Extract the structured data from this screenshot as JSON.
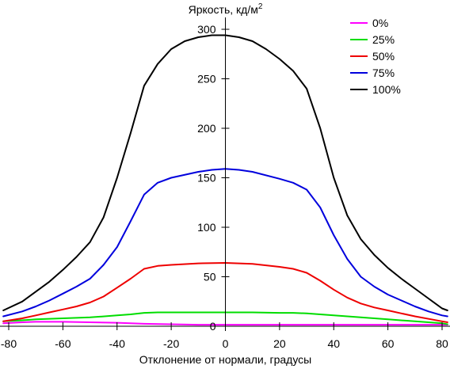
{
  "chart_data": {
    "type": "line",
    "title": "",
    "ylabel_text": "Яркость, кд/м",
    "ylabel_sup": "2",
    "xlabel": "Отклонение от нормали, градусы",
    "xlim": [
      -80,
      80
    ],
    "ylim": [
      0,
      300
    ],
    "x_ticks": [
      -80,
      -60,
      -40,
      -20,
      0,
      20,
      40,
      60,
      80
    ],
    "y_ticks": [
      0,
      50,
      100,
      150,
      200,
      250,
      300
    ],
    "grid": false,
    "legend_position": "top-right",
    "series": [
      {
        "name": "0%",
        "color": "#ff00ff",
        "x": [
          -82,
          -75,
          -70,
          -60,
          -50,
          -40,
          -30,
          -20,
          -10,
          0,
          10,
          20,
          30,
          40,
          50,
          60,
          70,
          80,
          82
        ],
        "y": [
          3,
          4,
          4.5,
          4.5,
          4,
          3.5,
          2.5,
          2,
          1.5,
          1.5,
          1.5,
          1.5,
          1.5,
          1.5,
          1.5,
          1.5,
          1.5,
          1.5,
          1.5
        ]
      },
      {
        "name": "25%",
        "color": "#00dd00",
        "x": [
          -82,
          -75,
          -70,
          -60,
          -50,
          -40,
          -35,
          -30,
          -25,
          -20,
          -10,
          0,
          10,
          20,
          25,
          30,
          35,
          40,
          50,
          60,
          70,
          80,
          82
        ],
        "y": [
          5,
          6,
          7,
          8,
          9,
          11,
          12,
          13.5,
          14,
          14,
          14,
          14,
          14,
          13.5,
          13.5,
          13,
          12,
          11,
          9,
          7,
          5,
          3,
          2
        ]
      },
      {
        "name": "50%",
        "color": "#ee0000",
        "x": [
          -82,
          -75,
          -70,
          -65,
          -60,
          -55,
          -50,
          -45,
          -40,
          -35,
          -30,
          -25,
          -20,
          -10,
          0,
          10,
          20,
          25,
          30,
          35,
          40,
          45,
          50,
          55,
          60,
          65,
          70,
          80,
          82
        ],
        "y": [
          5,
          8,
          11,
          14,
          17,
          20,
          24,
          30,
          39,
          48,
          58,
          61,
          62,
          63.5,
          64,
          63,
          60,
          58,
          54,
          46,
          37,
          29,
          23,
          19,
          16,
          13,
          10,
          5,
          4
        ]
      },
      {
        "name": "75%",
        "color": "#0000dd",
        "x": [
          -82,
          -75,
          -70,
          -65,
          -60,
          -55,
          -50,
          -45,
          -40,
          -35,
          -30,
          -25,
          -20,
          -10,
          -5,
          0,
          5,
          10,
          20,
          25,
          30,
          35,
          40,
          45,
          50,
          55,
          60,
          65,
          70,
          75,
          80,
          82
        ],
        "y": [
          10,
          15,
          20,
          26,
          33,
          40,
          48,
          62,
          80,
          106,
          133,
          145,
          150,
          156,
          158,
          159,
          158,
          156,
          149,
          145,
          138,
          120,
          92,
          68,
          50,
          40,
          32,
          26,
          20,
          15,
          11,
          10
        ]
      },
      {
        "name": "100%",
        "color": "#000000",
        "x": [
          -82,
          -75,
          -70,
          -65,
          -60,
          -55,
          -50,
          -45,
          -40,
          -35,
          -30,
          -25,
          -20,
          -15,
          -10,
          -5,
          0,
          5,
          10,
          15,
          20,
          25,
          30,
          35,
          40,
          45,
          50,
          55,
          60,
          65,
          70,
          75,
          80,
          82
        ],
        "y": [
          16,
          25,
          35,
          45,
          57,
          70,
          85,
          110,
          150,
          195,
          243,
          265,
          280,
          288,
          292,
          294,
          294,
          292,
          288,
          280,
          270,
          258,
          240,
          200,
          150,
          112,
          88,
          72,
          59,
          48,
          38,
          28,
          18,
          16
        ]
      }
    ]
  }
}
